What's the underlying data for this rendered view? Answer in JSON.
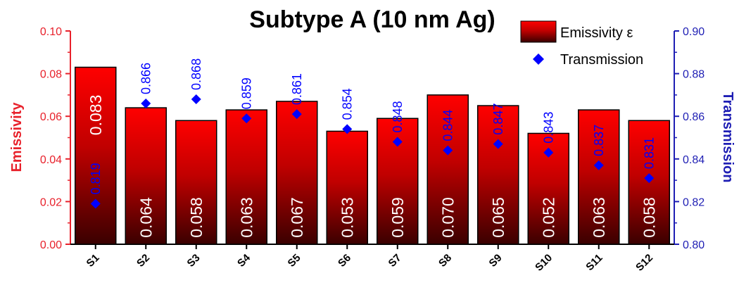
{
  "chart_data": {
    "type": "bar",
    "title": "Subtype A (10 nm Ag)",
    "categories": [
      "S1",
      "S2",
      "S3",
      "S4",
      "S5",
      "S6",
      "S7",
      "S8",
      "S9",
      "S10",
      "S11",
      "S12"
    ],
    "series": [
      {
        "name": "Emissivity ε",
        "axis": "left",
        "type": "bar",
        "values": [
          0.083,
          0.064,
          0.058,
          0.063,
          0.067,
          0.053,
          0.059,
          0.07,
          0.065,
          0.052,
          0.063,
          0.058
        ],
        "labels": [
          "0.083",
          "0.064",
          "0.058",
          "0.063",
          "0.067",
          "0.053",
          "0.059",
          "0.070",
          "0.065",
          "0.052",
          "0.063",
          "0.058"
        ]
      },
      {
        "name": "Transmission",
        "axis": "right",
        "type": "scatter",
        "marker": "diamond",
        "values": [
          0.819,
          0.866,
          0.868,
          0.859,
          0.861,
          0.854,
          0.848,
          0.844,
          0.847,
          0.843,
          0.837,
          0.831
        ],
        "labels": [
          "0.819",
          "0.866",
          "0.868",
          "0.859",
          "0.861",
          "0.854",
          "0.848",
          "0.844",
          "0.847",
          "0.843",
          "0.837",
          "0.831"
        ]
      }
    ],
    "ylabel_left": "Emissivity",
    "ylabel_right": "Transmission",
    "ylim_left": [
      0,
      0.1
    ],
    "ylim_right": [
      0.8,
      0.9
    ],
    "yticks_left": [
      "0.00",
      "0.02",
      "0.04",
      "0.06",
      "0.08",
      "0.10"
    ],
    "yticks_right": [
      "0.80",
      "0.82",
      "0.84",
      "0.86",
      "0.88",
      "0.90"
    ],
    "grid": false,
    "legend_position": "top-right",
    "colors": {
      "bar_top": "#ff0000",
      "bar_bottom": "#3a0000",
      "left_axis": "#e8212b",
      "right_axis": "#1e1eb4",
      "marker": "#0000ff"
    }
  }
}
